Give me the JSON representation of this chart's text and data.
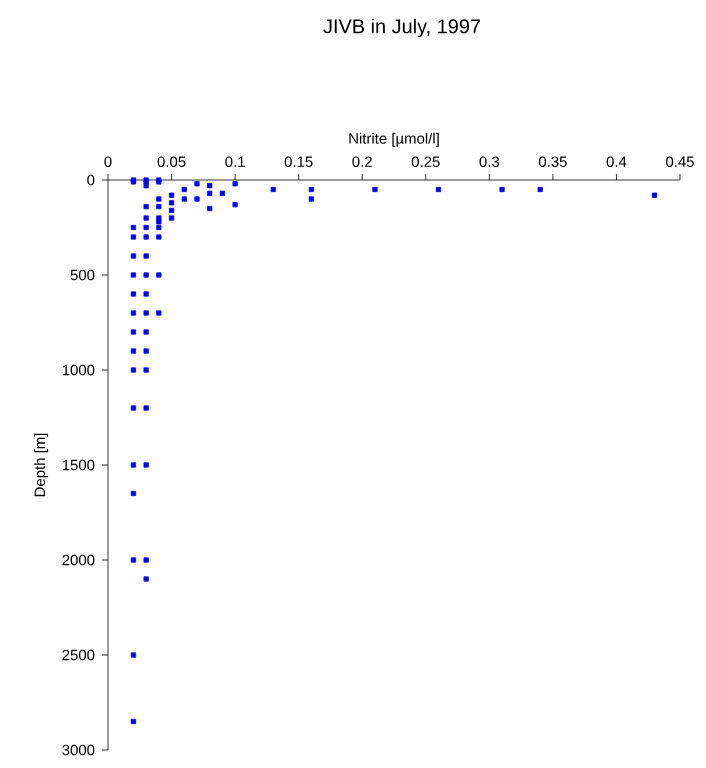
{
  "chart_data": {
    "type": "scatter",
    "title": "JIVB in July, 1997",
    "xlabel": "Nitrite [µmol/l]",
    "ylabel": "Depth [m]",
    "xlim": [
      0,
      0.45
    ],
    "xticks": [
      0,
      0.05,
      0.1,
      0.15,
      0.2,
      0.25,
      0.3,
      0.35,
      0.4,
      0.45
    ],
    "ylim": [
      3000,
      0
    ],
    "yticks": [
      0,
      500,
      1000,
      1500,
      2000,
      2500,
      3000
    ],
    "marker": "square",
    "series": [
      {
        "color": "#0000ff",
        "x": [
          0.02,
          0.02,
          0.02,
          0.02,
          0.02,
          0.02,
          0.02,
          0.02,
          0.02,
          0.02,
          0.02,
          0.02,
          0.02,
          0.02,
          0.02,
          0.02,
          0.02,
          0.03,
          0.03,
          0.03,
          0.03,
          0.03,
          0.03,
          0.03,
          0.03,
          0.03,
          0.03,
          0.03,
          0.03,
          0.03,
          0.03,
          0.03,
          0.03,
          0.03,
          0.03,
          0.04,
          0.04,
          0.04,
          0.04,
          0.04,
          0.04,
          0.04,
          0.04,
          0.04,
          0.04,
          0.05,
          0.05,
          0.05,
          0.05,
          0.06,
          0.06,
          0.07,
          0.07,
          0.08,
          0.08,
          0.08,
          0.09,
          0.1,
          0.1,
          0.13,
          0.16,
          0.16,
          0.21,
          0.26,
          0.31,
          0.34,
          0.43
        ],
        "values": [
          0,
          10,
          250,
          300,
          400,
          500,
          600,
          700,
          800,
          900,
          1000,
          1200,
          1500,
          1650,
          2000,
          2500,
          2850,
          0,
          10,
          30,
          140,
          200,
          250,
          300,
          400,
          500,
          600,
          700,
          800,
          900,
          1000,
          1200,
          1500,
          2000,
          2100,
          0,
          10,
          100,
          140,
          200,
          220,
          250,
          300,
          500,
          700,
          80,
          120,
          160,
          200,
          50,
          100,
          20,
          100,
          30,
          70,
          150,
          70,
          20,
          130,
          50,
          50,
          100,
          50,
          50,
          50,
          50,
          80
        ]
      }
    ]
  }
}
